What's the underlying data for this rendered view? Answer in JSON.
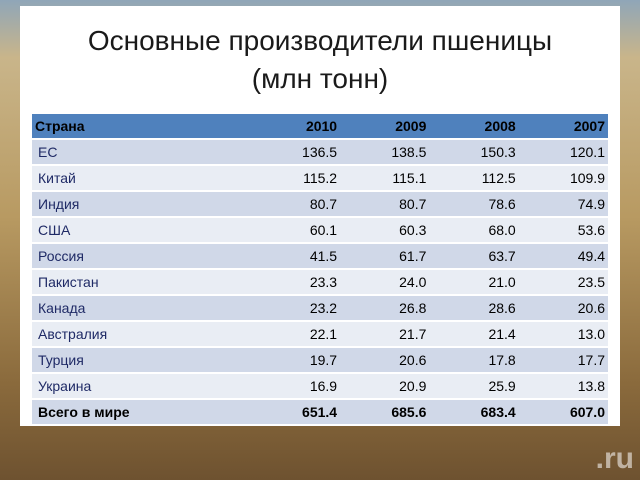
{
  "title": {
    "line1": "Основные производители пшеницы",
    "line2": "(млн тонн)"
  },
  "table": {
    "header": [
      "Страна",
      "2010",
      "2009",
      "2008",
      "2007"
    ],
    "rows": [
      [
        "ЕС",
        "136.5",
        "138.5",
        "150.3",
        "120.1"
      ],
      [
        "Китай",
        "115.2",
        "115.1",
        "112.5",
        "109.9"
      ],
      [
        "Индия",
        "80.7",
        "80.7",
        "78.6",
        "74.9"
      ],
      [
        "США",
        "60.1",
        "60.3",
        "68.0",
        "53.6"
      ],
      [
        "Россия",
        "41.5",
        "61.7",
        "63.7",
        "49.4"
      ],
      [
        "Пакистан",
        "23.3",
        "24.0",
        "21.0",
        "23.5"
      ],
      [
        "Канада",
        "23.2",
        "26.8",
        "28.6",
        "20.6"
      ],
      [
        "Австралия",
        "22.1",
        "21.7",
        "21.4",
        "13.0"
      ],
      [
        "Турция",
        "19.7",
        "20.6",
        "17.8",
        "17.7"
      ],
      [
        "Украина",
        "16.9",
        "20.9",
        "25.9",
        "13.8"
      ],
      [
        "Всего в мире",
        "651.4",
        "685.6",
        "683.4",
        "607.0"
      ]
    ]
  },
  "watermark": ".ru"
}
